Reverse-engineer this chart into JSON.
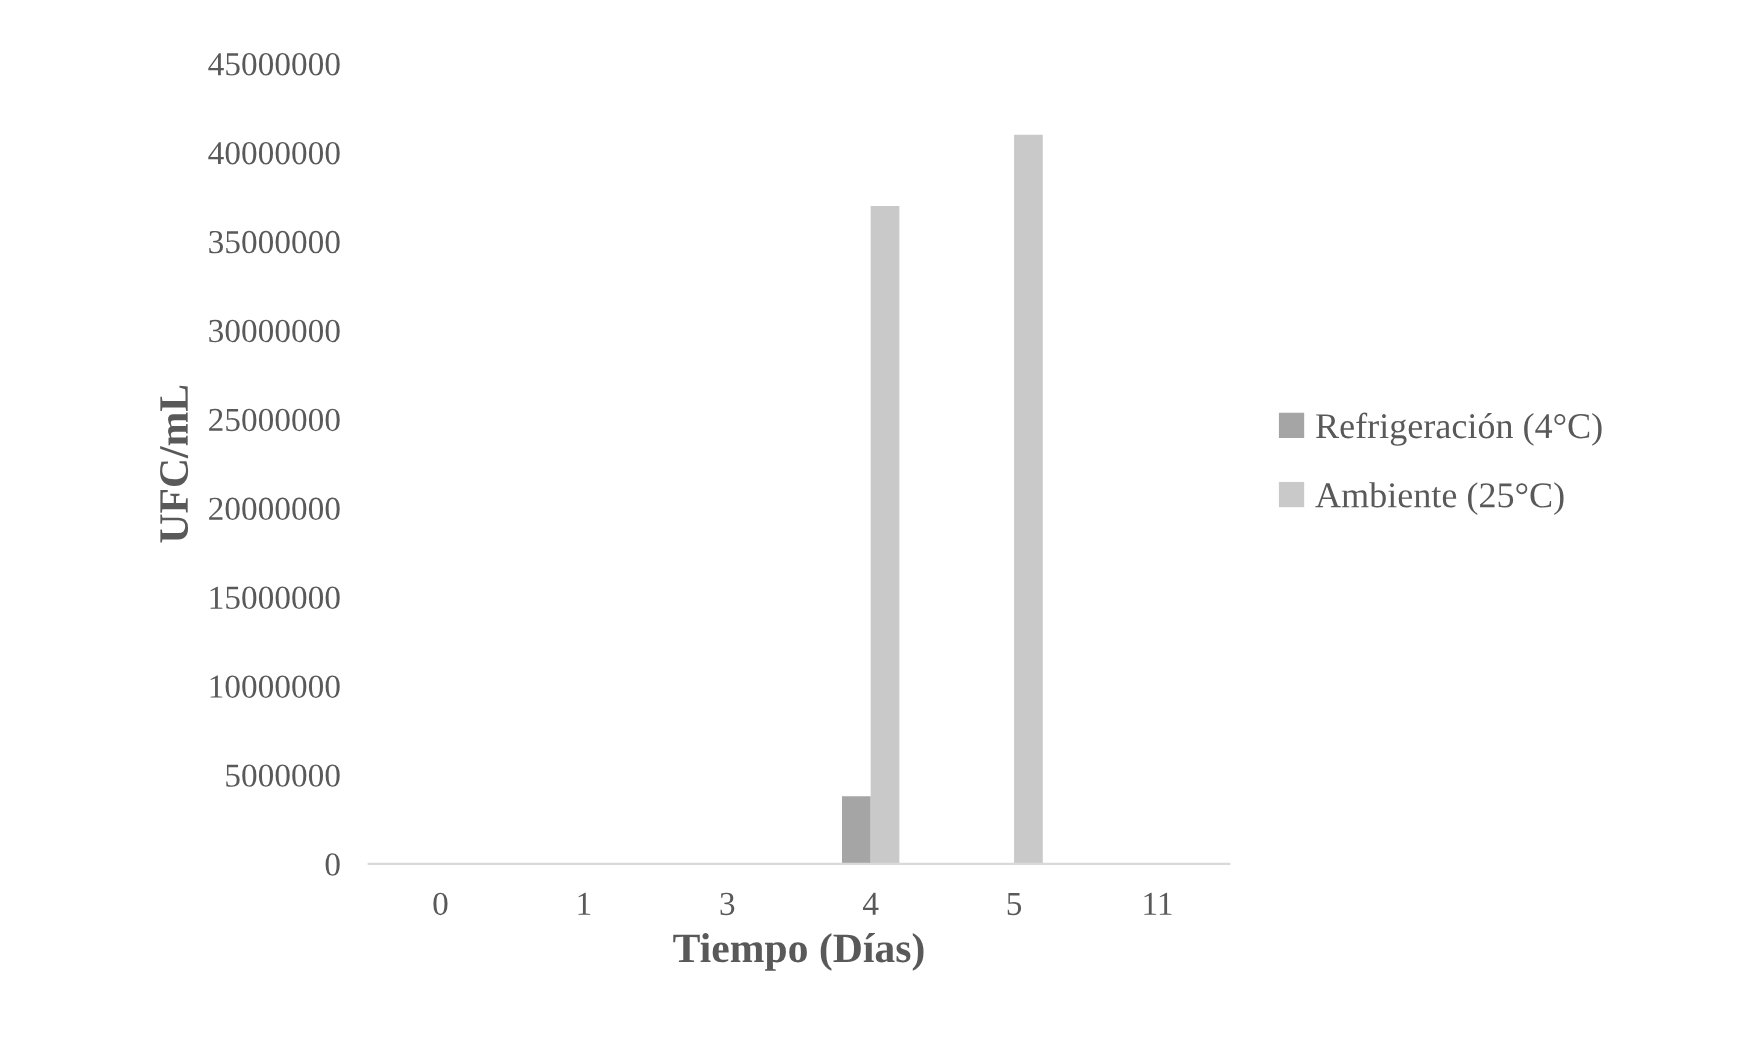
{
  "chart_data": {
    "type": "bar",
    "xlabel": "Tiempo (Días)",
    "ylabel": "UFC/mL",
    "categories": [
      "0",
      "1",
      "3",
      "4",
      "5",
      "11"
    ],
    "series": [
      {
        "name": "Refrigeración (4°C)",
        "color": "#a5a5a5",
        "values": [
          0,
          0,
          0,
          3800000,
          0,
          0
        ]
      },
      {
        "name": "Ambiente (25°C)",
        "color": "#c9c9c9",
        "values": [
          0,
          0,
          0,
          37000000,
          41000000,
          0
        ]
      }
    ],
    "ylim": [
      0,
      45000000
    ],
    "yticks": [
      0,
      5000000,
      10000000,
      15000000,
      20000000,
      25000000,
      30000000,
      35000000,
      40000000,
      45000000
    ],
    "grid": false,
    "legend": "right"
  }
}
